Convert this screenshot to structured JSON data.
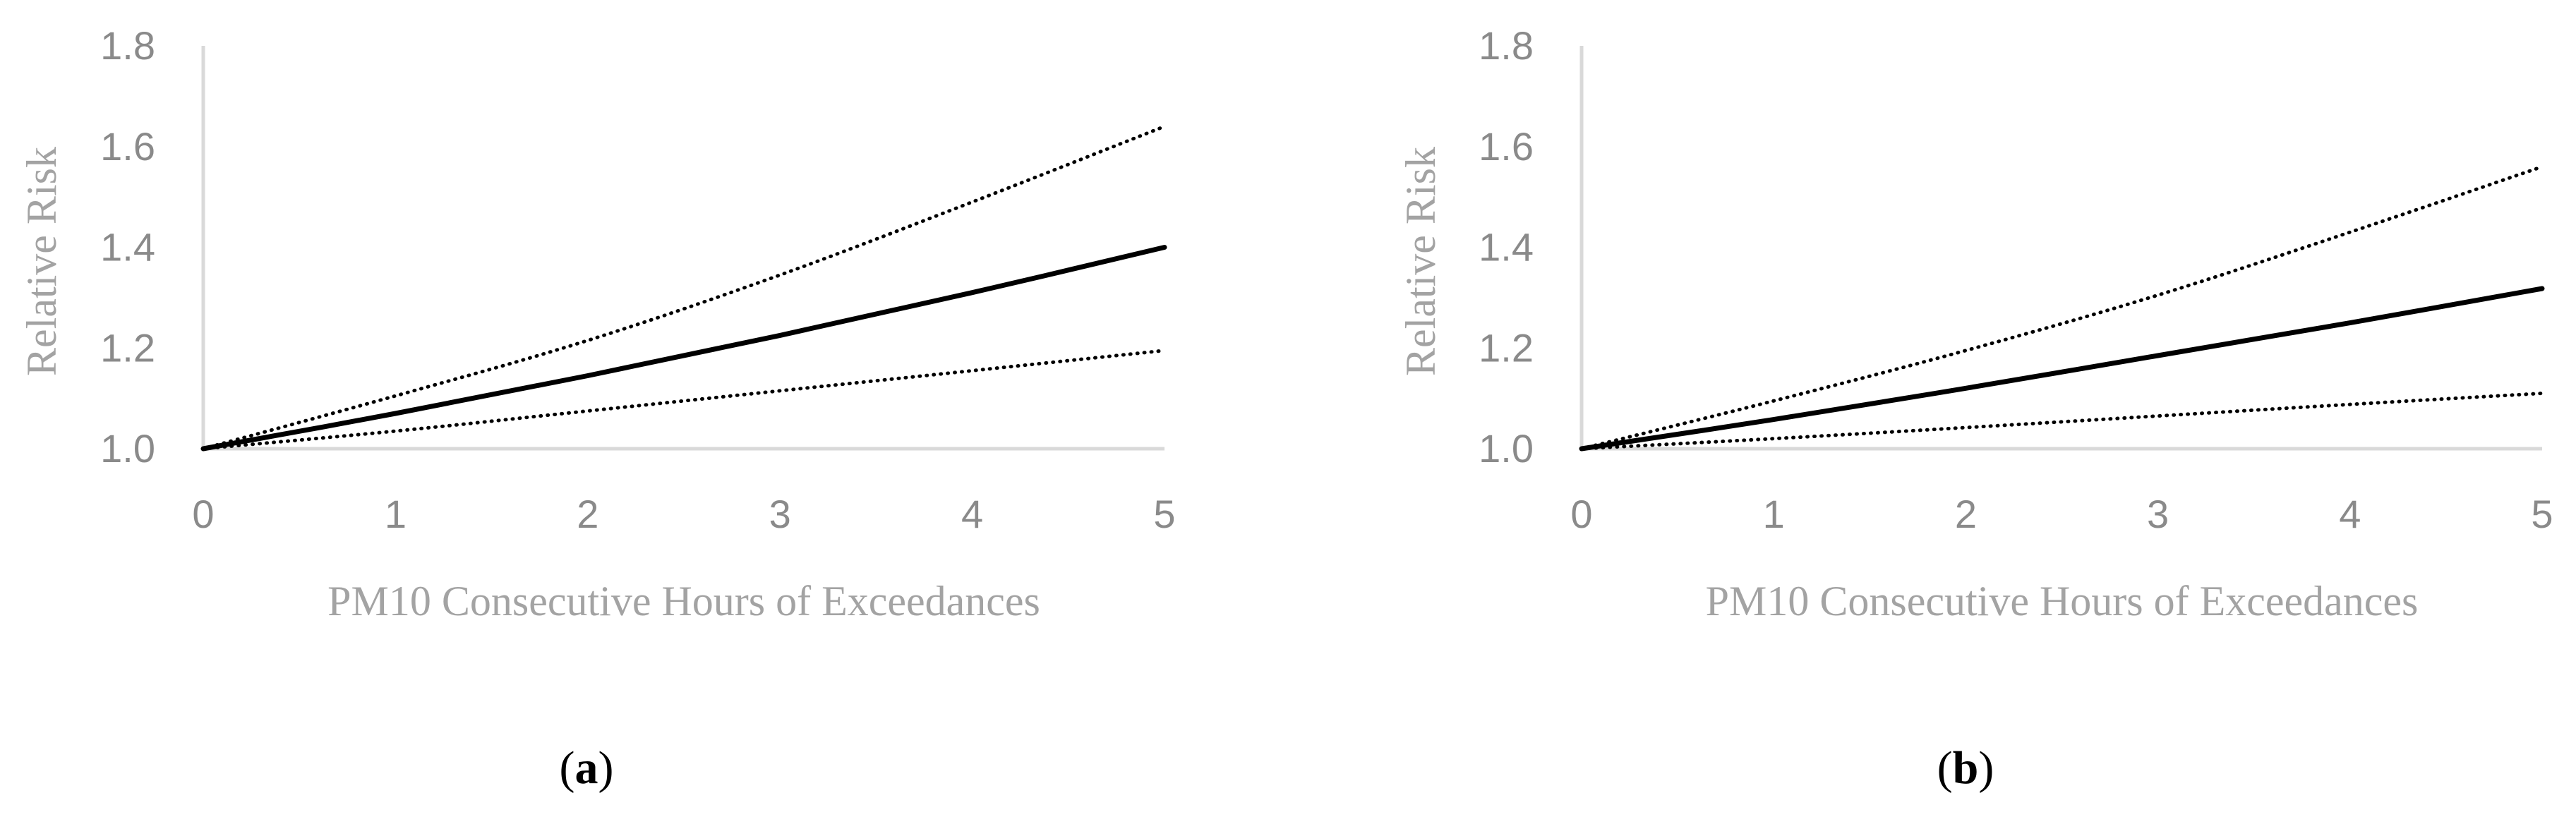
{
  "chart_data": [
    {
      "type": "line",
      "panel_label": "(a)",
      "panel_letter": "a",
      "xlabel": "PM10 Consecutive Hours of Exceedances",
      "ylabel": "Relative Risk",
      "xlim": [
        0,
        5
      ],
      "ylim": [
        1.0,
        1.8
      ],
      "x_ticks": [
        "0",
        "1",
        "2",
        "3",
        "4",
        "5"
      ],
      "y_ticks": [
        "1.0",
        "1.2",
        "1.4",
        "1.6",
        "1.8"
      ],
      "grid": false,
      "x": [
        0,
        1,
        2,
        3,
        4,
        5
      ],
      "series": [
        {
          "style": "solid",
          "values": [
            1.0,
            1.07,
            1.145,
            1.225,
            1.31,
            1.4
          ]
        },
        {
          "style": "dotted",
          "values": [
            1.0,
            1.105,
            1.215,
            1.345,
            1.49,
            1.64
          ]
        },
        {
          "style": "dotted",
          "values": [
            1.0,
            1.035,
            1.075,
            1.115,
            1.155,
            1.195
          ]
        }
      ]
    },
    {
      "type": "line",
      "panel_label": "(b)",
      "panel_letter": "b",
      "xlabel": "PM10 Consecutive Hours of Exceedances",
      "ylabel": "Relative Risk",
      "xlim": [
        0,
        5
      ],
      "ylim": [
        1.0,
        1.8
      ],
      "x_ticks": [
        "0",
        "1",
        "2",
        "3",
        "4",
        "5"
      ],
      "y_ticks": [
        "1.0",
        "1.2",
        "1.4",
        "1.6",
        "1.8"
      ],
      "grid": false,
      "x": [
        0,
        1,
        2,
        3,
        4,
        5
      ],
      "series": [
        {
          "style": "solid",
          "values": [
            1.0,
            1.058,
            1.12,
            1.185,
            1.25,
            1.318
          ]
        },
        {
          "style": "dotted",
          "values": [
            1.0,
            1.095,
            1.195,
            1.305,
            1.43,
            1.56
          ]
        },
        {
          "style": "dotted",
          "values": [
            1.0,
            1.02,
            1.042,
            1.065,
            1.088,
            1.11
          ]
        }
      ]
    }
  ],
  "colors": {
    "line": "#000000",
    "axis": "#d9d9d9",
    "tick_text": "#8a8a8a",
    "title_text": "#a3a3a3"
  }
}
